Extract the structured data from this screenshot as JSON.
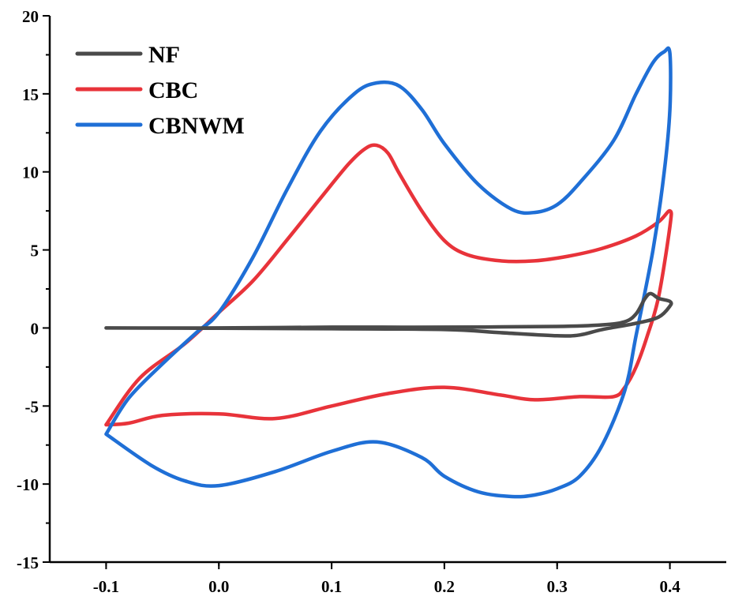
{
  "chart_data": {
    "type": "line",
    "title": "",
    "xlabel": "",
    "ylabel": "",
    "xlim": [
      -0.15,
      0.45
    ],
    "ylim": [
      -15,
      20
    ],
    "grid": false,
    "legend_position": "top-left",
    "x_ticks": [
      -0.1,
      0.0,
      0.1,
      0.2,
      0.3,
      0.4
    ],
    "x_tick_labels": [
      "-0.1",
      "0.0",
      "0.1",
      "0.2",
      "0.3",
      "0.4"
    ],
    "y_ticks": [
      -15,
      -10,
      -5,
      0,
      5,
      10,
      15,
      20
    ],
    "y_tick_labels": [
      "-15",
      "-10",
      "-5",
      "0",
      "5",
      "10",
      "15",
      "20"
    ],
    "series": [
      {
        "name": "NF",
        "color": "#4a4a4a",
        "points": [
          [
            -0.1,
            0.0
          ],
          [
            0.0,
            0.0
          ],
          [
            0.1,
            0.05
          ],
          [
            0.2,
            0.05
          ],
          [
            0.3,
            0.1
          ],
          [
            0.34,
            0.2
          ],
          [
            0.36,
            0.4
          ],
          [
            0.37,
            0.9
          ],
          [
            0.378,
            1.9
          ],
          [
            0.383,
            2.2
          ],
          [
            0.39,
            1.9
          ],
          [
            0.4,
            1.7
          ],
          [
            0.4,
            1.4
          ],
          [
            0.39,
            0.7
          ],
          [
            0.37,
            0.3
          ],
          [
            0.34,
            -0.1
          ],
          [
            0.32,
            -0.45
          ],
          [
            0.3,
            -0.5
          ],
          [
            0.25,
            -0.3
          ],
          [
            0.2,
            -0.1
          ],
          [
            0.1,
            -0.05
          ],
          [
            0.0,
            -0.02
          ],
          [
            -0.1,
            0.0
          ]
        ]
      },
      {
        "name": "CBC",
        "color": "#e8333a",
        "points": [
          [
            -0.1,
            -6.2
          ],
          [
            -0.07,
            -3.2
          ],
          [
            -0.03,
            -1.0
          ],
          [
            0.0,
            1.0
          ],
          [
            0.03,
            3.0
          ],
          [
            0.06,
            5.6
          ],
          [
            0.09,
            8.3
          ],
          [
            0.115,
            10.5
          ],
          [
            0.13,
            11.5
          ],
          [
            0.14,
            11.7
          ],
          [
            0.15,
            11.2
          ],
          [
            0.16,
            9.9
          ],
          [
            0.18,
            7.5
          ],
          [
            0.2,
            5.6
          ],
          [
            0.22,
            4.7
          ],
          [
            0.25,
            4.3
          ],
          [
            0.28,
            4.3
          ],
          [
            0.31,
            4.6
          ],
          [
            0.34,
            5.1
          ],
          [
            0.37,
            5.9
          ],
          [
            0.39,
            6.8
          ],
          [
            0.4,
            7.5
          ],
          [
            0.4,
            6.5
          ],
          [
            0.39,
            2.0
          ],
          [
            0.38,
            -0.5
          ],
          [
            0.37,
            -2.5
          ],
          [
            0.36,
            -3.8
          ],
          [
            0.35,
            -4.4
          ],
          [
            0.32,
            -4.4
          ],
          [
            0.28,
            -4.6
          ],
          [
            0.25,
            -4.3
          ],
          [
            0.2,
            -3.8
          ],
          [
            0.15,
            -4.2
          ],
          [
            0.1,
            -5.0
          ],
          [
            0.05,
            -5.8
          ],
          [
            0.0,
            -5.5
          ],
          [
            -0.05,
            -5.6
          ],
          [
            -0.08,
            -6.1
          ],
          [
            -0.1,
            -6.2
          ]
        ]
      },
      {
        "name": "CBNWM",
        "color": "#1f6fd6",
        "points": [
          [
            -0.1,
            -6.8
          ],
          [
            -0.08,
            -4.5
          ],
          [
            -0.05,
            -2.3
          ],
          [
            -0.02,
            -0.3
          ],
          [
            0.0,
            1.0
          ],
          [
            0.03,
            4.5
          ],
          [
            0.06,
            8.8
          ],
          [
            0.09,
            12.6
          ],
          [
            0.12,
            15.0
          ],
          [
            0.14,
            15.7
          ],
          [
            0.16,
            15.5
          ],
          [
            0.18,
            14.0
          ],
          [
            0.2,
            11.8
          ],
          [
            0.23,
            9.2
          ],
          [
            0.26,
            7.6
          ],
          [
            0.28,
            7.4
          ],
          [
            0.3,
            7.9
          ],
          [
            0.32,
            9.3
          ],
          [
            0.35,
            12.0
          ],
          [
            0.37,
            15.0
          ],
          [
            0.385,
            17.0
          ],
          [
            0.395,
            17.7
          ],
          [
            0.4,
            17.6
          ],
          [
            0.4,
            14.0
          ],
          [
            0.395,
            10.0
          ],
          [
            0.385,
            5.0
          ],
          [
            0.37,
            -0.5
          ],
          [
            0.36,
            -4.0
          ],
          [
            0.34,
            -7.5
          ],
          [
            0.32,
            -9.5
          ],
          [
            0.3,
            -10.3
          ],
          [
            0.28,
            -10.7
          ],
          [
            0.26,
            -10.8
          ],
          [
            0.23,
            -10.5
          ],
          [
            0.2,
            -9.5
          ],
          [
            0.18,
            -8.3
          ],
          [
            0.14,
            -7.3
          ],
          [
            0.1,
            -7.9
          ],
          [
            0.05,
            -9.2
          ],
          [
            0.0,
            -10.1
          ],
          [
            -0.03,
            -9.8
          ],
          [
            -0.06,
            -8.8
          ],
          [
            -0.1,
            -6.8
          ]
        ]
      }
    ]
  }
}
